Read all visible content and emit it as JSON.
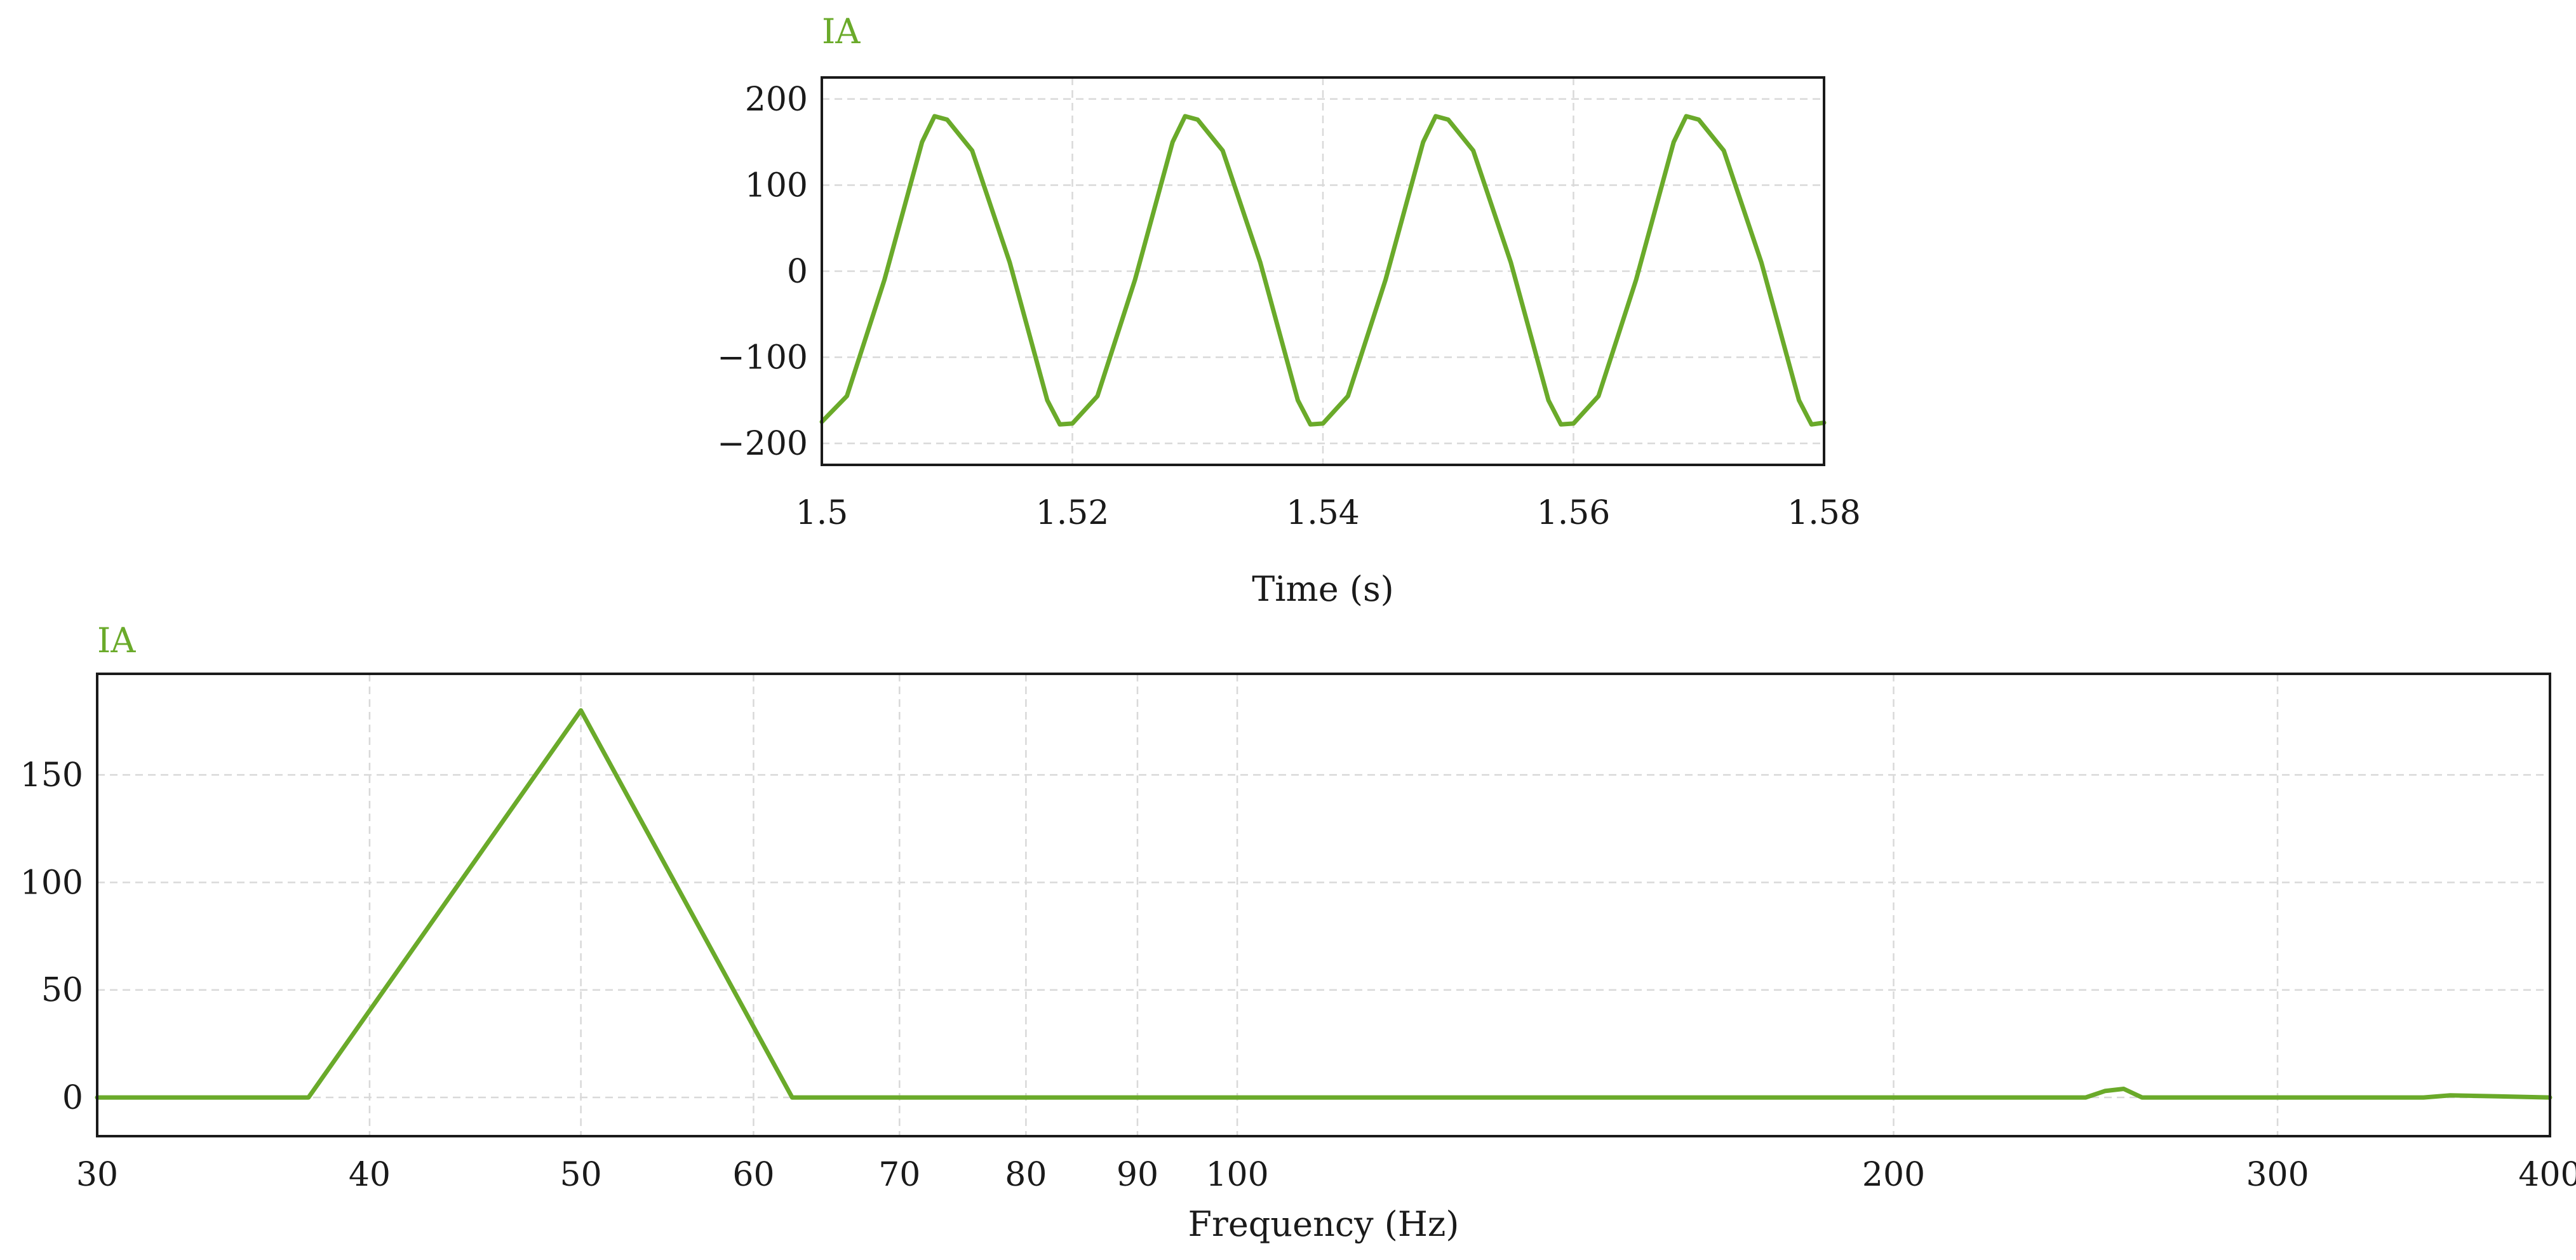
{
  "colors": {
    "series": "#6aaa2a",
    "text": "#1a1a1a",
    "grid": "#d9d9d9"
  },
  "chart_data": [
    {
      "type": "line",
      "series_label": "IA",
      "xlabel": "Time (s)",
      "ylabel": "",
      "xlim": [
        1.5,
        1.58
      ],
      "ylim": [
        -225,
        225
      ],
      "xticks": [
        "1.5",
        "1.52",
        "1.54",
        "1.56",
        "1.58"
      ],
      "xtick_values": [
        1.5,
        1.52,
        1.54,
        1.56,
        1.58
      ],
      "yticks": [
        "200",
        "100",
        "0",
        "−100",
        "−200"
      ],
      "ytick_values": [
        200,
        100,
        0,
        -100,
        -200
      ],
      "grid": true,
      "series": [
        {
          "name": "IA",
          "x": [
            1.5,
            1.502,
            1.505,
            1.508,
            1.509,
            1.51,
            1.512,
            1.515,
            1.518,
            1.519,
            1.52,
            1.522,
            1.525,
            1.528,
            1.529,
            1.53,
            1.532,
            1.535,
            1.538,
            1.539,
            1.54,
            1.542,
            1.545,
            1.548,
            1.549,
            1.55,
            1.552,
            1.555,
            1.558,
            1.559,
            1.56,
            1.562,
            1.565,
            1.568,
            1.569,
            1.57,
            1.572,
            1.575,
            1.578,
            1.579,
            1.58
          ],
          "y": [
            -175,
            -145,
            -10,
            150,
            180,
            176,
            140,
            10,
            -150,
            -178,
            -177,
            -145,
            -10,
            150,
            180,
            176,
            140,
            10,
            -150,
            -178,
            -177,
            -145,
            -10,
            150,
            180,
            176,
            140,
            10,
            -150,
            -178,
            -177,
            -145,
            -10,
            150,
            180,
            176,
            140,
            10,
            -150,
            -178,
            -176
          ]
        }
      ]
    },
    {
      "type": "line",
      "series_label": "IA",
      "xlabel": "Frequency (Hz)",
      "ylabel": "",
      "xscale": "log",
      "xlim": [
        30,
        400
      ],
      "ylim": [
        -18,
        197
      ],
      "xticks": [
        "30",
        "40",
        "50",
        "60",
        "70",
        "80",
        "90",
        "100",
        "200",
        "300",
        "400"
      ],
      "xtick_values": [
        30,
        40,
        50,
        60,
        70,
        80,
        90,
        100,
        200,
        300,
        400
      ],
      "yticks": [
        "150",
        "100",
        "50",
        "0"
      ],
      "ytick_values": [
        150,
        100,
        50,
        0
      ],
      "grid": true,
      "series": [
        {
          "name": "IA",
          "x": [
            30,
            37.5,
            50,
            62.5,
            245,
            250,
            255,
            260,
            350,
            360,
            400
          ],
          "y": [
            0,
            0,
            180,
            0,
            0,
            3,
            4,
            0,
            0,
            1,
            0
          ]
        }
      ]
    }
  ]
}
